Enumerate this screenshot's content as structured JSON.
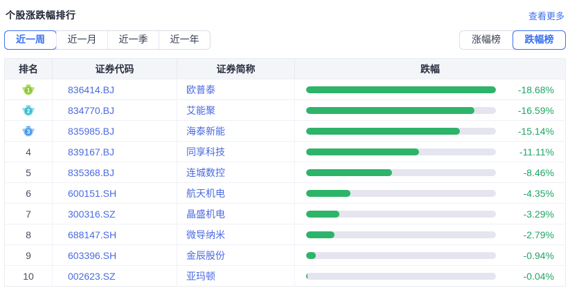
{
  "header": {
    "title": "个股涨跌幅排行",
    "more_link": "查看更多"
  },
  "period_tabs": {
    "items": [
      {
        "key": "week",
        "label": "近一周",
        "selected": true
      },
      {
        "key": "month",
        "label": "近一月",
        "selected": false
      },
      {
        "key": "quarter",
        "label": "近一季",
        "selected": false
      },
      {
        "key": "year",
        "label": "近一年",
        "selected": false
      }
    ]
  },
  "rank_toggle": {
    "items": [
      {
        "key": "gainers",
        "label": "涨幅榜",
        "selected": false
      },
      {
        "key": "losers",
        "label": "跌幅榜",
        "selected": true
      }
    ]
  },
  "table": {
    "columns": [
      {
        "key": "rank",
        "label": "排名"
      },
      {
        "key": "code",
        "label": "证券代码"
      },
      {
        "key": "name",
        "label": "证券简称"
      },
      {
        "key": "change",
        "label": "跌幅"
      }
    ],
    "rows": [
      {
        "rank": 1,
        "code": "836414.BJ",
        "name": "欧普泰",
        "change_label": "-18.68%",
        "change_value": -18.68
      },
      {
        "rank": 2,
        "code": "834770.BJ",
        "name": "艾能聚",
        "change_label": "-16.59%",
        "change_value": -16.59
      },
      {
        "rank": 3,
        "code": "835985.BJ",
        "name": "海泰新能",
        "change_label": "-15.14%",
        "change_value": -15.14
      },
      {
        "rank": 4,
        "code": "839167.BJ",
        "name": "同享科技",
        "change_label": "-11.11%",
        "change_value": -11.11
      },
      {
        "rank": 5,
        "code": "835368.BJ",
        "name": "连城数控",
        "change_label": "-8.46%",
        "change_value": -8.46
      },
      {
        "rank": 6,
        "code": "600151.SH",
        "name": "航天机电",
        "change_label": "-4.35%",
        "change_value": -4.35
      },
      {
        "rank": 7,
        "code": "300316.SZ",
        "name": "晶盛机电",
        "change_label": "-3.29%",
        "change_value": -3.29
      },
      {
        "rank": 8,
        "code": "688147.SH",
        "name": "微导纳米",
        "change_label": "-2.79%",
        "change_value": -2.79
      },
      {
        "rank": 9,
        "code": "603396.SH",
        "name": "金辰股份",
        "change_label": "-0.94%",
        "change_value": -0.94
      },
      {
        "rank": 10,
        "code": "002623.SZ",
        "name": "亚玛顿",
        "change_label": "-0.04%",
        "change_value": -0.04
      }
    ]
  },
  "colors": {
    "bar_green": "#2db469",
    "pct_green": "#1ea565",
    "link_blue": "#3a70f1",
    "code_blue": "#4a6ae0",
    "bar_track": "#e4e5ef",
    "medal_rank1": {
      "main": "#8dc63f",
      "light": "#b8e06e"
    },
    "medal_rank2": {
      "main": "#3fbdcf",
      "light": "#8fdde8"
    },
    "medal_rank3": {
      "main": "#4a9bee",
      "light": "#9cc8f7"
    }
  }
}
